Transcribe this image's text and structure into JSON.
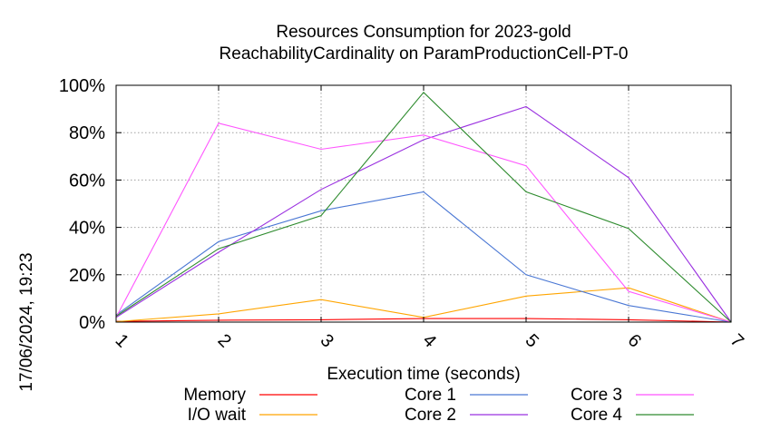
{
  "chart_data": {
    "type": "line",
    "title": [
      "Resources Consumption for 2023-gold",
      "ReachabilityCardinality on ParamProductionCell-PT-0"
    ],
    "xlabel": "Execution time (seconds)",
    "ylabel": "",
    "x": [
      1,
      2,
      3,
      4,
      5,
      6,
      7
    ],
    "x_ticks": [
      "1",
      "2",
      "3",
      "4",
      "5",
      "6",
      "7"
    ],
    "xlim": [
      1,
      7
    ],
    "y_ticks": [
      "0%",
      "20%",
      "40%",
      "60%",
      "80%",
      "100%"
    ],
    "ylim": [
      0,
      100
    ],
    "grid": true,
    "legend_position": "bottom",
    "series": [
      {
        "name": "Memory",
        "color": "#ff0000",
        "values": [
          0.3,
          0.8,
          1.0,
          1.5,
          1.5,
          1.0,
          0.0
        ]
      },
      {
        "name": "I/O wait",
        "color": "#ffa500",
        "values": [
          0.2,
          3.5,
          9.5,
          2.0,
          11.0,
          14.5,
          0.0
        ]
      },
      {
        "name": "Core 1",
        "color": "#4a77d4",
        "values": [
          3.0,
          34.0,
          47.0,
          55.0,
          20.0,
          7.0,
          0.0
        ]
      },
      {
        "name": "Core 2",
        "color": "#9a30e0",
        "values": [
          2.0,
          29.5,
          56.0,
          77.0,
          91.0,
          61.0,
          0.0
        ]
      },
      {
        "name": "Core 3",
        "color": "#ff55ff",
        "values": [
          2.0,
          84.0,
          73.0,
          79.0,
          66.0,
          13.0,
          0.0
        ]
      },
      {
        "name": "Core 4",
        "color": "#2e8b2e",
        "values": [
          2.5,
          31.0,
          45.0,
          97.0,
          55.0,
          39.5,
          0.0
        ]
      }
    ]
  },
  "timestamp": "17/06/2024, 19:23"
}
